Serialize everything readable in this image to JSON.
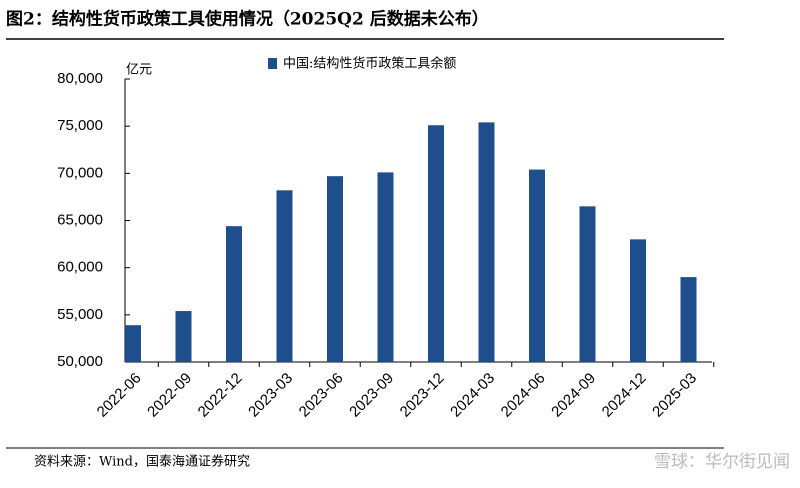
{
  "chart_data": {
    "type": "bar",
    "title": "图2：结构性货币政策工具使用情况（2025Q2 后数据未公布）",
    "y_unit": "亿元",
    "source": "资料来源：Wind，国泰海通证券研究",
    "watermark": "雪球：华尔街见闻",
    "categories": [
      "2022-06",
      "2022-09",
      "2022-12",
      "2023-03",
      "2023-06",
      "2023-09",
      "2023-12",
      "2024-03",
      "2024-06",
      "2024-09",
      "2024-12",
      "2025-03"
    ],
    "series": [
      {
        "name": "中国:结构性货币政策工具余额",
        "color": "#1f4e8c",
        "values": [
          53900,
          55400,
          64400,
          68200,
          69700,
          70100,
          75100,
          75400,
          70400,
          66500,
          63000,
          59000
        ]
      }
    ],
    "ylim": [
      50000,
      80000
    ],
    "yticks": [
      {
        "value": 50000,
        "label": "50,000"
      },
      {
        "value": 55000,
        "label": "55,000"
      },
      {
        "value": 60000,
        "label": "60,000"
      },
      {
        "value": 65000,
        "label": "65,000"
      },
      {
        "value": 70000,
        "label": "70,000"
      },
      {
        "value": 75000,
        "label": "75,000"
      },
      {
        "value": 80000,
        "label": "80,000"
      }
    ],
    "grid": false,
    "legend": "top"
  }
}
